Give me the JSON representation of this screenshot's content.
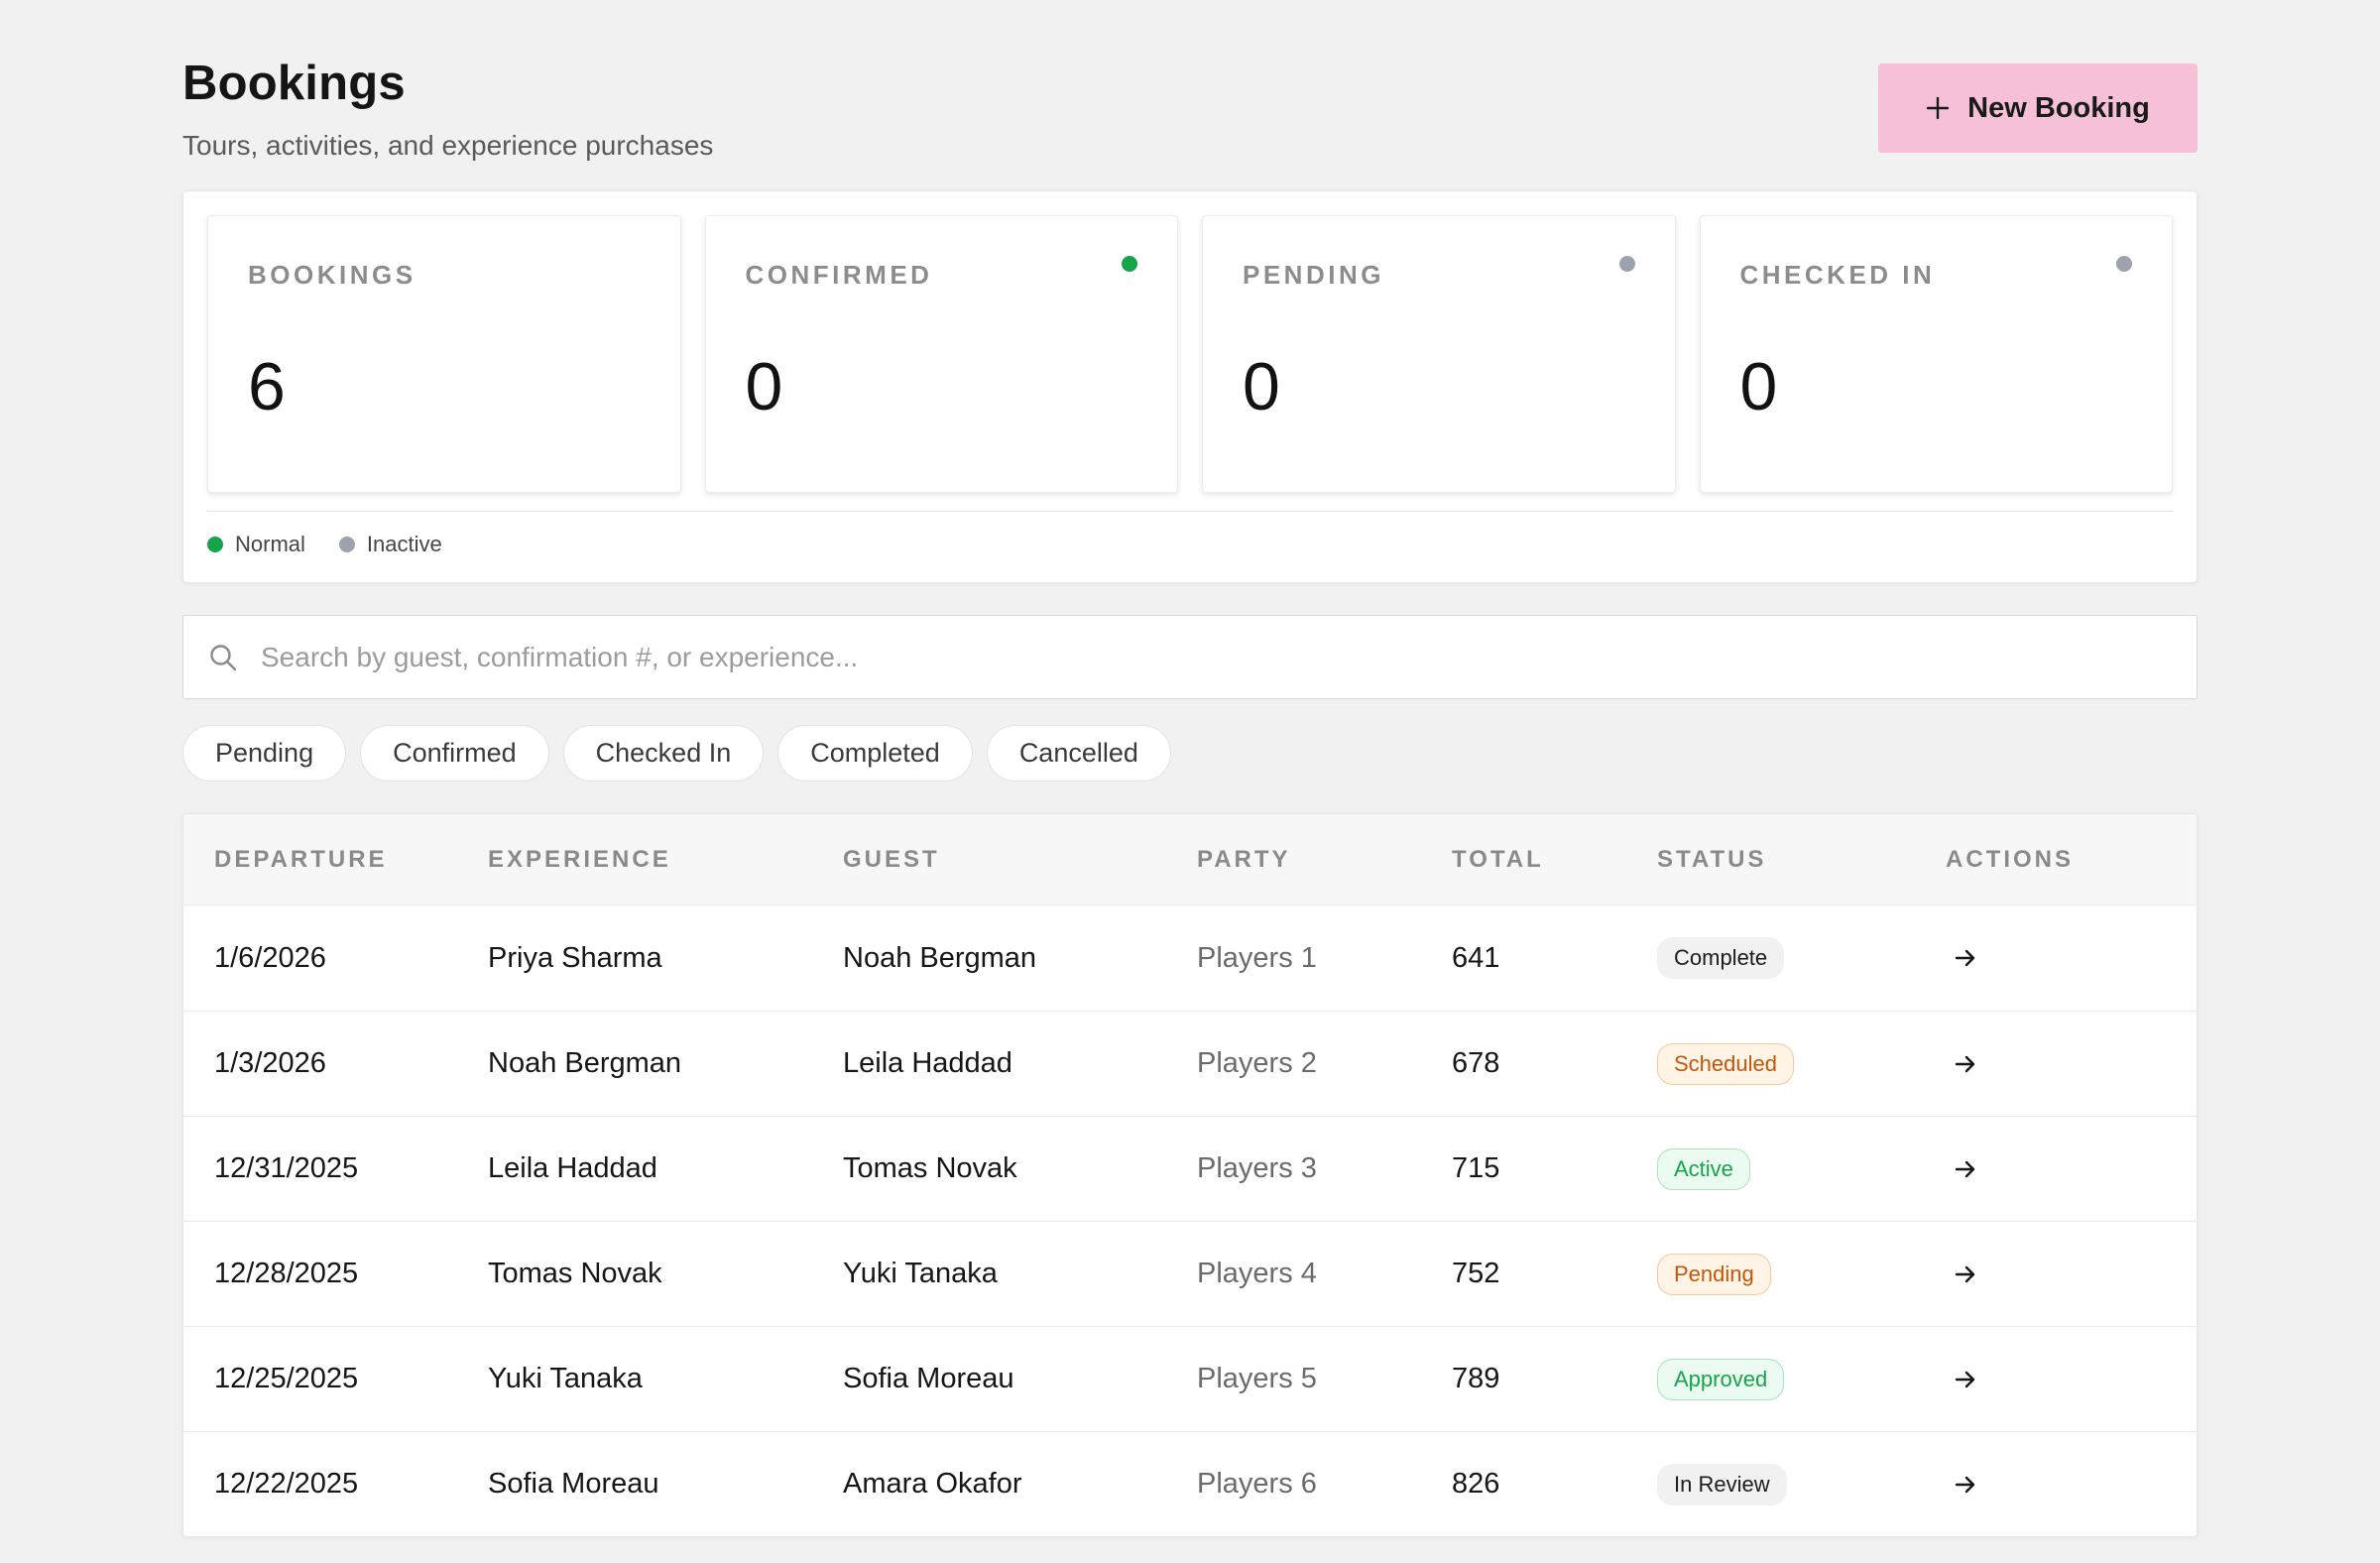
{
  "header": {
    "title": "Bookings",
    "subtitle": "Tours, activities, and experience purchases",
    "new_button_label": "New Booking"
  },
  "stats": [
    {
      "label": "BOOKINGS",
      "value": "6",
      "indicator": null
    },
    {
      "label": "CONFIRMED",
      "value": "0",
      "indicator": "#16a34a"
    },
    {
      "label": "PENDING",
      "value": "0",
      "indicator": "#9ca3af"
    },
    {
      "label": "CHECKED IN",
      "value": "0",
      "indicator": "#9ca3af"
    }
  ],
  "legend": [
    {
      "label": "Normal",
      "color": "#16a34a"
    },
    {
      "label": "Inactive",
      "color": "#9ca3af"
    }
  ],
  "search": {
    "placeholder": "Search by guest, confirmation #, or experience...",
    "value": ""
  },
  "filters": [
    "Pending",
    "Confirmed",
    "Checked In",
    "Completed",
    "Cancelled"
  ],
  "table": {
    "columns": [
      "DEPARTURE",
      "EXPERIENCE",
      "GUEST",
      "PARTY",
      "TOTAL",
      "STATUS",
      "ACTIONS"
    ],
    "rows": [
      {
        "departure": "1/6/2026",
        "experience": "Priya Sharma",
        "guest": "Noah Bergman",
        "party": "Players 1",
        "total": "641",
        "status": "Complete",
        "status_tone": "neutral"
      },
      {
        "departure": "1/3/2026",
        "experience": "Noah Bergman",
        "guest": "Leila Haddad",
        "party": "Players 2",
        "total": "678",
        "status": "Scheduled",
        "status_tone": "orange"
      },
      {
        "departure": "12/31/2025",
        "experience": "Leila Haddad",
        "guest": "Tomas Novak",
        "party": "Players 3",
        "total": "715",
        "status": "Active",
        "status_tone": "green"
      },
      {
        "departure": "12/28/2025",
        "experience": "Tomas Novak",
        "guest": "Yuki Tanaka",
        "party": "Players 4",
        "total": "752",
        "status": "Pending",
        "status_tone": "orange"
      },
      {
        "departure": "12/25/2025",
        "experience": "Yuki Tanaka",
        "guest": "Sofia Moreau",
        "party": "Players 5",
        "total": "789",
        "status": "Approved",
        "status_tone": "green"
      },
      {
        "departure": "12/22/2025",
        "experience": "Sofia Moreau",
        "guest": "Amara Okafor",
        "party": "Players 6",
        "total": "826",
        "status": "In Review",
        "status_tone": "neutral"
      }
    ],
    "action_icon": "arrow-right-icon"
  },
  "colors": {
    "accent_button": "#f6c1d8",
    "status_green": "#16a34a",
    "status_gray": "#9ca3af",
    "status_orange": "#c2570b"
  }
}
